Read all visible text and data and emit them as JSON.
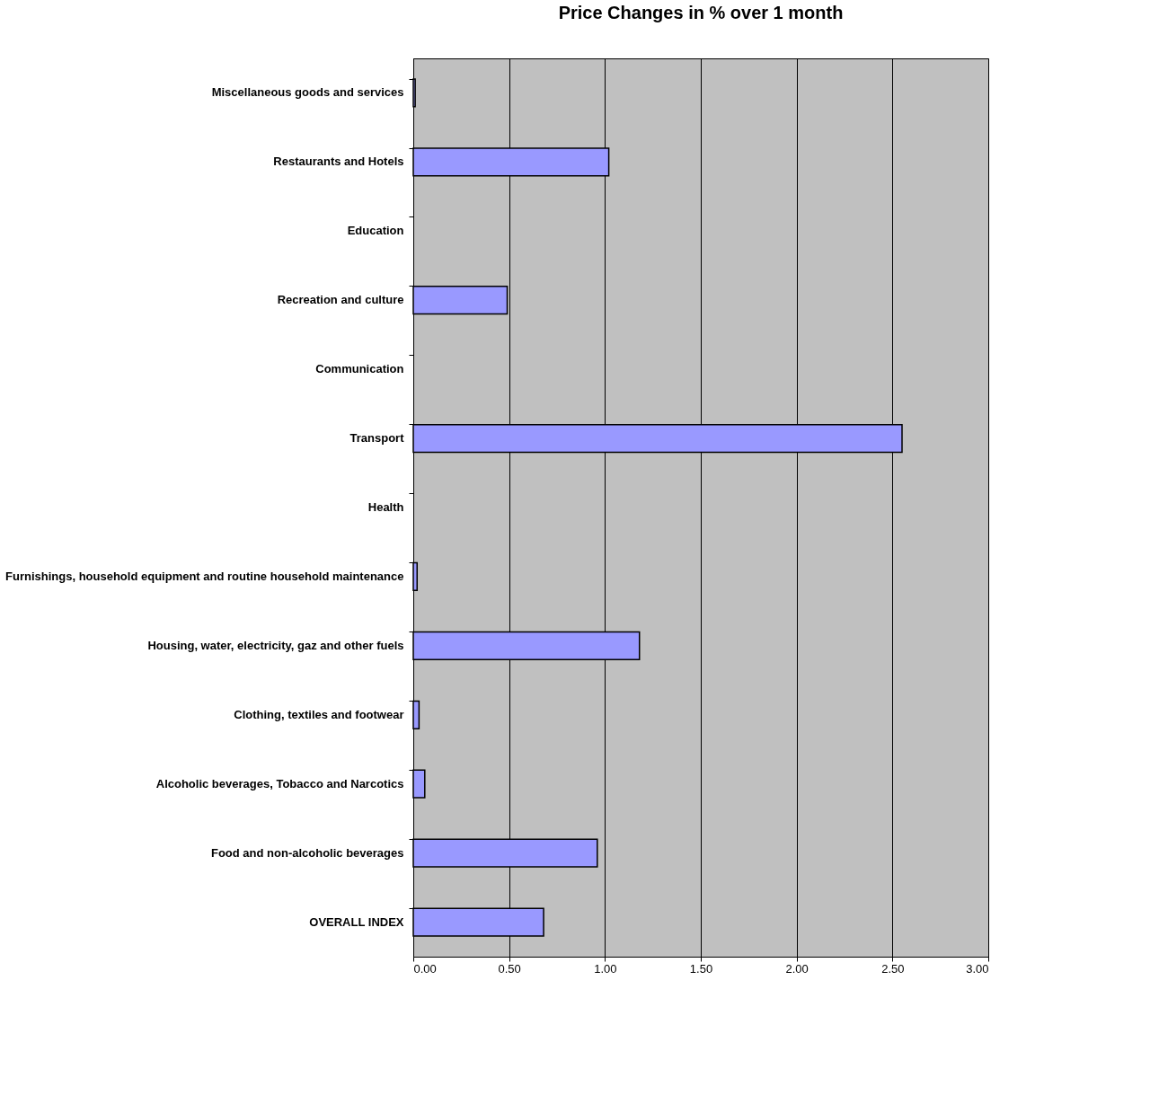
{
  "chart_data": {
    "type": "bar",
    "orientation": "horizontal",
    "title": "Price Changes in % over 1 month",
    "categories": [
      "Miscellaneous goods and services",
      "Restaurants and Hotels",
      "Education",
      "Recreation and culture",
      "Communication",
      "Transport",
      "Health",
      "Furnishings, household equipment and routine household maintenance",
      "Housing, water, electricity, gaz and other fuels",
      "Clothing, textiles and footwear",
      "Alcoholic beverages, Tobacco and Narcotics",
      "Food and non-alcoholic beverages",
      "OVERALL INDEX"
    ],
    "values": [
      0.01,
      1.02,
      null,
      0.49,
      null,
      2.55,
      null,
      0.02,
      1.18,
      0.03,
      0.06,
      0.96,
      0.68
    ],
    "color": "#9999ff",
    "xlim": [
      0,
      3
    ],
    "xticks": [
      {
        "value": 0,
        "label": "0.00"
      },
      {
        "value": 0.5,
        "label": "0.50"
      },
      {
        "value": 1,
        "label": "1.00"
      },
      {
        "value": 1.5,
        "label": "1.50"
      },
      {
        "value": 2,
        "label": "2.00"
      },
      {
        "value": 2.5,
        "label": "2.50"
      },
      {
        "value": 3,
        "label": "3.00"
      }
    ],
    "grid": "x"
  }
}
